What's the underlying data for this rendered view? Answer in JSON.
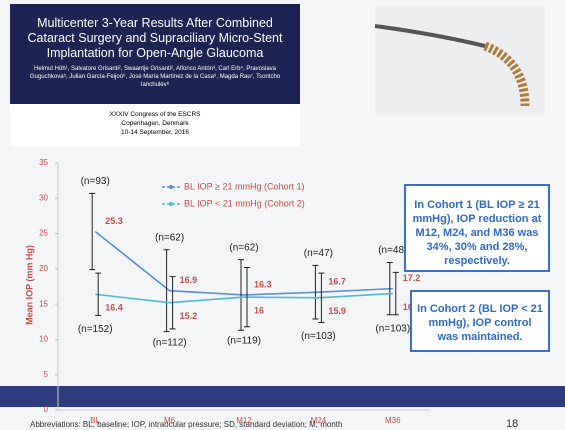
{
  "header": {
    "title": "Multicenter 3-Year Results After Combined Cataract Surgery and Supraciliary Micro-Stent Implantation for Open-Angle Glaucoma",
    "authors": "Helmut Höh¹, Salvatore Grisanti², Swaantje Grisanti², Alfonso Antón³, Carl Erb⁴, Pravoslava Guguchkova⁵, Julian García-Feijoó⁶, José María Martínez de la Casa⁶, Magda Rau⁷, Tsontcho Ianchulev⁸",
    "conference": [
      "XXXIV Congress of the ESCRS",
      "Copenhagen, Denmark",
      "10-14 September, 2016"
    ]
  },
  "chart_data": {
    "type": "line",
    "y_label": "Mean IOP (mm Hg)",
    "categories": [
      "BL",
      "M6",
      "M12",
      "M24",
      "M36"
    ],
    "ylim": [
      0,
      35
    ],
    "yticks": [
      0,
      5,
      10,
      15,
      20,
      25,
      30,
      35
    ],
    "series": [
      {
        "name": "BL IOP ≥ 21 mmHg (Cohort 1)",
        "color": "#5b8fd6",
        "values": [
          25.3,
          16.9,
          16.3,
          16.7,
          17.2
        ],
        "errors": [
          5.4,
          5.8,
          5.0,
          3.8,
          3.7
        ],
        "n_labels": [
          "(n=93)",
          "(n=62)",
          "(n=62)",
          "(n=47)",
          "(n=48)"
        ]
      },
      {
        "name": "BL IOP < 21 mmHg (Cohort 2)",
        "color": "#4bbcd4",
        "values": [
          16.4,
          15.2,
          16.0,
          15.9,
          16.5
        ],
        "errors": [
          3.0,
          3.7,
          4.2,
          3.5,
          3.0
        ],
        "n_labels": [
          "(n=152)",
          "(n=112)",
          "(n=119)",
          "(n=103)",
          "(n=103)"
        ]
      }
    ]
  },
  "callouts": [
    "In Cohort 1 (BL IOP ≥ 21 mmHg), IOP reduction at M12, M24, and M36 was 34%, 30% and 28%, respectively.",
    "In Cohort 2 (BL IOP < 21 mmHg), IOP control was maintained."
  ],
  "footer": {
    "abbreviations": "Abbreviations: BL, baseline; IOP, intraocular pressure; SD, standard deviation; M, month",
    "page_number": 18
  }
}
